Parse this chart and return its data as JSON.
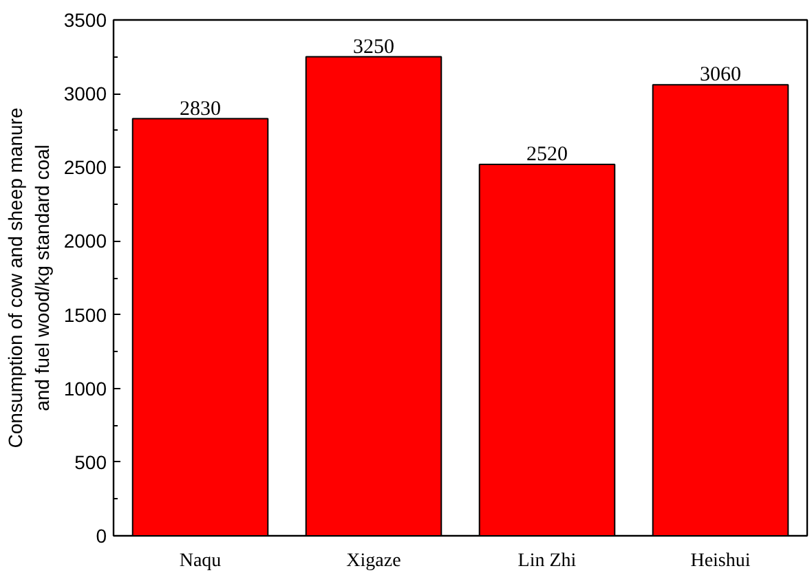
{
  "chart_data": {
    "type": "bar",
    "ylabel": "Consumption of cow and sheep manure\nand fuel wood/kg standard coal",
    "categories": [
      "Naqu",
      "Xigaze",
      "Lin Zhi",
      "Heishui"
    ],
    "values": [
      2830,
      3250,
      2520,
      3060
    ],
    "color": "#ff0000",
    "ylim": [
      0,
      3500
    ],
    "yticks": [
      0,
      500,
      1000,
      1500,
      2000,
      2500,
      3000,
      3500
    ],
    "data_labels": true,
    "grid": false
  }
}
